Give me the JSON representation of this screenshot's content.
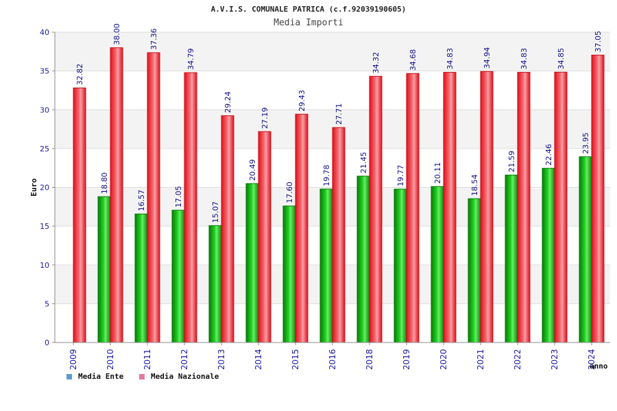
{
  "chart_data": {
    "type": "bar",
    "title": "A.V.I.S. COMUNALE PATRICA (c.f.92039190605)",
    "subtitle": "Media Importi",
    "xlabel": "anno",
    "ylabel": "Euro",
    "ylim": [
      0,
      40
    ],
    "yticks": [
      0,
      5,
      10,
      15,
      20,
      25,
      30,
      35,
      40
    ],
    "grid": true,
    "legend_position": "bottom-left",
    "categories": [
      "2009",
      "2010",
      "2011",
      "2012",
      "2013",
      "2014",
      "2015",
      "2016",
      "2018",
      "2019",
      "2020",
      "2021",
      "2022",
      "2023",
      "2024"
    ],
    "series": [
      {
        "name": "Media Ente",
        "legend_color": "#5b9bd5",
        "bar_color": "#11bb11",
        "values": [
          null,
          18.8,
          16.57,
          17.05,
          15.07,
          20.49,
          17.6,
          19.78,
          21.45,
          19.77,
          20.11,
          18.54,
          21.59,
          22.46,
          23.95
        ],
        "labels": [
          "",
          "18.80",
          "16.57",
          "17.05",
          "15.07",
          "20.49",
          "17.60",
          "19.78",
          "21.45",
          "19.77",
          "20.11",
          "18.54",
          "21.59",
          "22.46",
          "23.95"
        ]
      },
      {
        "name": "Media Nazionale",
        "legend_color": "#e07aa0",
        "bar_color": "#ee1122",
        "values": [
          32.82,
          38.0,
          37.36,
          34.79,
          29.24,
          27.19,
          29.43,
          27.71,
          34.32,
          34.68,
          34.83,
          34.94,
          34.83,
          34.85,
          37.05
        ],
        "labels": [
          "32.82",
          "38.00",
          "37.36",
          "34.79",
          "29.24",
          "27.19",
          "29.43",
          "27.71",
          "34.32",
          "34.68",
          "34.83",
          "34.94",
          "34.83",
          "34.85",
          "37.05"
        ]
      }
    ]
  }
}
